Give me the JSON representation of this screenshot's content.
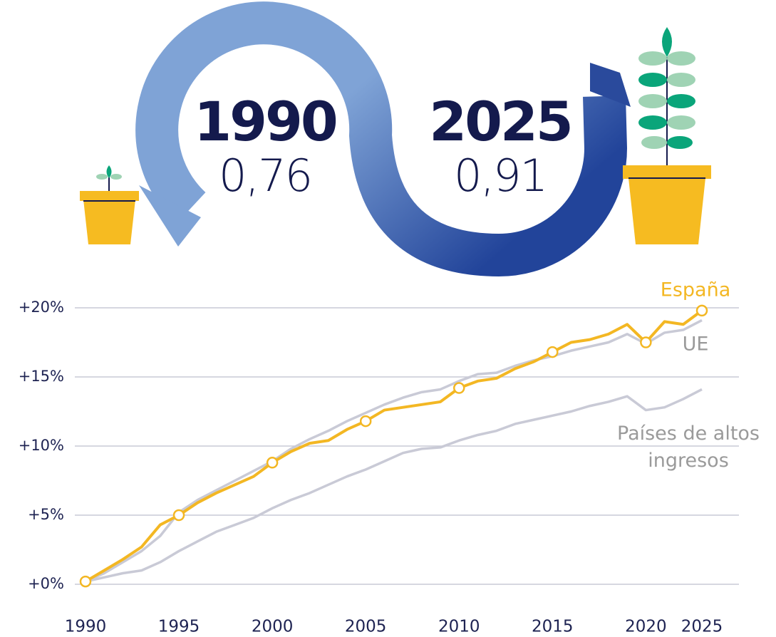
{
  "infographic": {
    "start_year": "1990",
    "start_value": "0,76",
    "end_year": "2025",
    "end_value": "0,91"
  },
  "chart_data": {
    "type": "line",
    "categories": [
      "1990",
      null,
      null,
      null,
      null,
      "1995",
      null,
      null,
      null,
      null,
      "2000",
      null,
      null,
      null,
      null,
      "2005",
      null,
      null,
      null,
      null,
      "2010",
      null,
      null,
      null,
      null,
      "2015",
      null,
      null,
      null,
      null,
      "2020",
      null,
      null,
      "2025"
    ],
    "series": [
      {
        "name": "España",
        "color": "#f3b723",
        "values": [
          0.2,
          1.0,
          1.8,
          2.7,
          4.3,
          5.0,
          5.9,
          6.6,
          7.2,
          7.8,
          8.8,
          9.6,
          10.2,
          10.4,
          11.2,
          11.8,
          12.6,
          12.8,
          13.0,
          13.2,
          14.2,
          14.7,
          14.9,
          15.6,
          16.1,
          16.8,
          17.5,
          17.7,
          18.1,
          18.8,
          17.5,
          19.0,
          18.8,
          19.8
        ]
      },
      {
        "name": "UE",
        "color": "#c9cad6",
        "values": [
          0.2,
          0.8,
          1.6,
          2.4,
          3.5,
          5.2,
          6.1,
          6.8,
          7.5,
          8.2,
          8.9,
          9.8,
          10.5,
          11.1,
          11.8,
          12.4,
          13.0,
          13.5,
          13.9,
          14.1,
          14.7,
          15.2,
          15.3,
          15.8,
          16.2,
          16.5,
          16.9,
          17.2,
          17.5,
          18.1,
          17.4,
          18.2,
          18.4,
          19.1
        ]
      },
      {
        "name": "Países de altos ingresos",
        "color": "#c9cad6",
        "values": [
          0.2,
          0.5,
          0.8,
          1.0,
          1.6,
          2.4,
          3.1,
          3.8,
          4.3,
          4.8,
          5.5,
          6.1,
          6.6,
          7.2,
          7.8,
          8.3,
          8.9,
          9.5,
          9.8,
          9.9,
          10.4,
          10.8,
          11.1,
          11.6,
          11.9,
          12.2,
          12.5,
          12.9,
          13.2,
          13.6,
          12.6,
          12.8,
          13.4,
          14.1
        ]
      }
    ],
    "ylim": [
      0,
      20
    ],
    "yticks": [
      {
        "value": 0,
        "label": "+0%"
      },
      {
        "value": 5,
        "label": "+5%"
      },
      {
        "value": 10,
        "label": "+10%"
      },
      {
        "value": 15,
        "label": "+15%"
      },
      {
        "value": 20,
        "label": "+20%"
      }
    ],
    "grid": true
  }
}
